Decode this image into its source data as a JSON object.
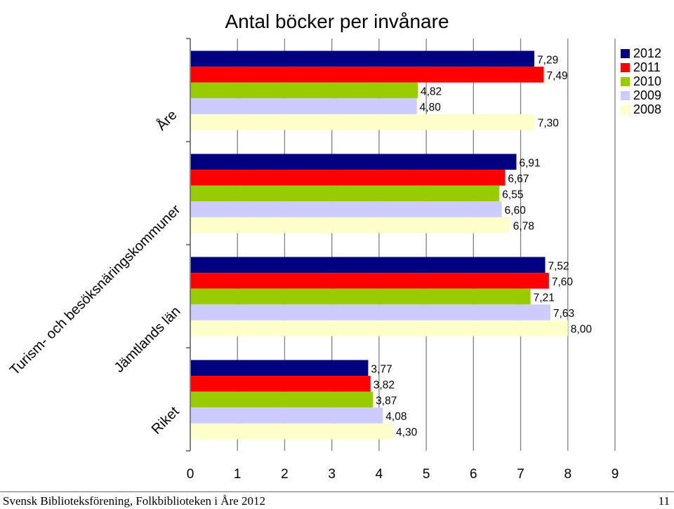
{
  "chart_data": {
    "type": "bar",
    "orientation": "horizontal",
    "title": "Antal böcker per invånare",
    "categories": [
      "Åre",
      "Turism- och besöksnäringskommuner",
      "Jämtlands län",
      "Riket"
    ],
    "series": [
      {
        "name": "2012",
        "color": "#000080",
        "values": [
          7.29,
          6.91,
          7.52,
          3.77
        ],
        "labels": [
          "7,29",
          "6,91",
          "7,52",
          "3,77"
        ]
      },
      {
        "name": "2011",
        "color": "#FF0000",
        "values": [
          7.49,
          6.67,
          7.6,
          3.82
        ],
        "labels": [
          "7,49",
          "6,67",
          "7,60",
          "3,82"
        ]
      },
      {
        "name": "2010",
        "color": "#99CC00",
        "values": [
          4.82,
          6.55,
          7.21,
          3.87
        ],
        "labels": [
          "4,82",
          "6,55",
          "7,21",
          "3,87"
        ]
      },
      {
        "name": "2009",
        "color": "#CCCCFF",
        "values": [
          4.8,
          6.6,
          7.63,
          4.08
        ],
        "labels": [
          "4,80",
          "6,60",
          "7,63",
          "4,08"
        ]
      },
      {
        "name": "2008",
        "color": "#FFFFCC",
        "values": [
          7.3,
          6.78,
          8.0,
          4.3
        ],
        "labels": [
          "7,30",
          "6,78",
          "8,00",
          "4,30"
        ]
      }
    ],
    "xlim": [
      0,
      9
    ],
    "xticks": [
      "0",
      "1",
      "2",
      "3",
      "4",
      "5",
      "6",
      "7",
      "8",
      "9"
    ],
    "grid": true,
    "legend_position": "top-right"
  },
  "footer": {
    "left": "Svensk Biblioteksförening, Folkbiblioteken i Åre 2012",
    "right": "11"
  }
}
